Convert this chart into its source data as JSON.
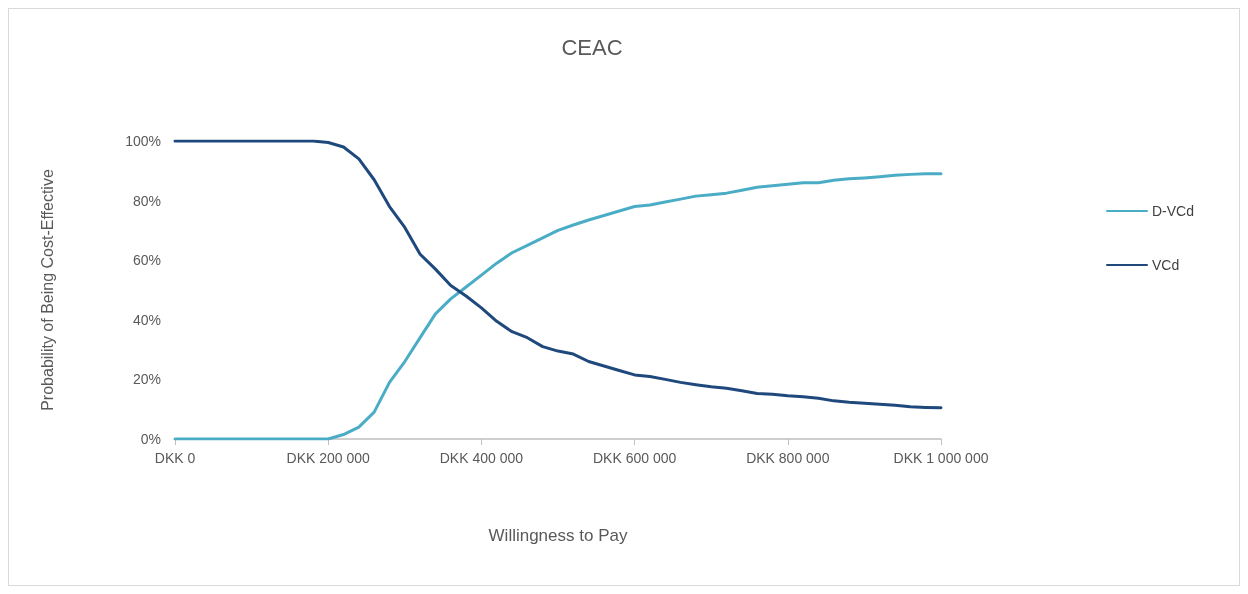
{
  "chart_data": {
    "type": "line",
    "title": "CEAC",
    "xlabel": "Willingness to Pay",
    "ylabel": "Probability of Being Cost-Effective",
    "categories": [
      "DKK 0",
      null,
      null,
      null,
      null,
      null,
      null,
      null,
      null,
      null,
      "DKK 200 000",
      null,
      null,
      null,
      null,
      null,
      null,
      null,
      null,
      null,
      "DKK 400 000",
      null,
      null,
      null,
      null,
      null,
      null,
      null,
      null,
      null,
      "DKK 600 000",
      null,
      null,
      null,
      null,
      null,
      null,
      null,
      null,
      null,
      "DKK 800 000",
      null,
      null,
      null,
      null,
      null,
      null,
      null,
      null,
      null,
      "DKK 1 000 000"
    ],
    "ylim": [
      0,
      100
    ],
    "yticks": [
      {
        "value": 0,
        "label": "0%"
      },
      {
        "value": 20,
        "label": "20%"
      },
      {
        "value": 40,
        "label": "40%"
      },
      {
        "value": 60,
        "label": "60%"
      },
      {
        "value": 80,
        "label": "80%"
      },
      {
        "value": 100,
        "label": "100%"
      }
    ],
    "grid": false,
    "legend": "right",
    "marker": "none",
    "line_style": "solid",
    "series": [
      {
        "name": "D-VCd",
        "color": "#4bacc6",
        "values": [
          0,
          0,
          0,
          0,
          0,
          0,
          0,
          0,
          0,
          0,
          0,
          1.5,
          4,
          9,
          19,
          26,
          34,
          42,
          47,
          51,
          55,
          59,
          62.5,
          65,
          67.5,
          70,
          71.8,
          73.5,
          75,
          76.5,
          78,
          78.5,
          79.5,
          80.5,
          81.5,
          82,
          82.5,
          83.5,
          84.5,
          85,
          85.5,
          86,
          86,
          86.8,
          87.3,
          87.6,
          88,
          88.5,
          88.8,
          89,
          89
        ]
      },
      {
        "name": "VCd",
        "color": "#1f497d",
        "values": [
          100,
          100,
          100,
          100,
          100,
          100,
          100,
          100,
          100,
          100,
          99.5,
          98,
          94,
          87,
          78,
          71,
          62,
          57,
          51.5,
          48,
          44,
          39.5,
          36,
          34,
          31,
          29.5,
          28.5,
          26,
          24.5,
          23,
          21.5,
          21,
          20,
          19,
          18.2,
          17.5,
          17,
          16.2,
          15.3,
          15,
          14.5,
          14.2,
          13.7,
          12.8,
          12.3,
          12,
          11.7,
          11.3,
          10.8,
          10.6,
          10.5
        ]
      }
    ]
  }
}
